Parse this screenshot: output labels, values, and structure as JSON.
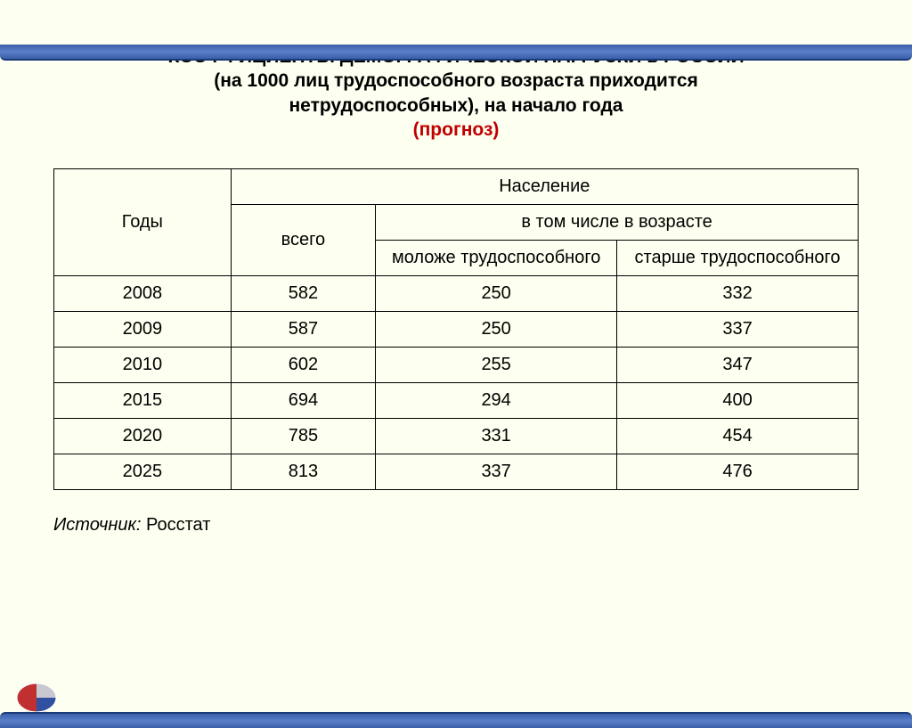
{
  "title": {
    "line1": "КОЭФФИЦИЕНТЫ ДЕМОГРАФИЧЕСКОЙ НАГРУЗКИ в РОССИИ",
    "line2": "(на 1000 лиц трудоспособного  возраста приходится",
    "line3": "нетрудоспособных), на начало года",
    "forecast": "(прогноз)",
    "title_color": "#000000",
    "forecast_color": "#c00000",
    "fontsize": 21,
    "fontweight": "bold"
  },
  "table": {
    "type": "table",
    "background_color": "#fdfff0",
    "border_color": "#000000",
    "cell_fontsize": 20,
    "headers": {
      "years": "Годы",
      "population": "Население",
      "total": "всего",
      "by_age": "в том числе в возрасте",
      "younger": "моложе трудоспособного",
      "older": "старше трудоспособного"
    },
    "columns": [
      "year",
      "total",
      "younger",
      "older"
    ],
    "column_widths_pct": [
      22,
      18,
      30,
      30
    ],
    "rows": [
      {
        "year": "2008",
        "total": "582",
        "younger": "250",
        "older": "332"
      },
      {
        "year": "2009",
        "total": "587",
        "younger": "250",
        "older": "337"
      },
      {
        "year": "2010",
        "total": "602",
        "younger": "255",
        "older": "347"
      },
      {
        "year": "2015",
        "total": "694",
        "younger": "294",
        "older": "400"
      },
      {
        "year": "2020",
        "total": "785",
        "younger": "331",
        "older": "454"
      },
      {
        "year": "2025",
        "total": "813",
        "younger": "337",
        "older": "476"
      }
    ]
  },
  "source": {
    "label": "Источник",
    "org": "Росстат",
    "fontsize": 20
  },
  "frame": {
    "bar_color_top": "#5b7fc8",
    "bar_color_edge": "#1a3a78",
    "page_background": "#fdfff0"
  },
  "logo": {
    "name": "pie-sphere-icon",
    "colors": {
      "red": "#c03030",
      "blue": "#3050a0",
      "grey": "#c8c8d0"
    }
  }
}
